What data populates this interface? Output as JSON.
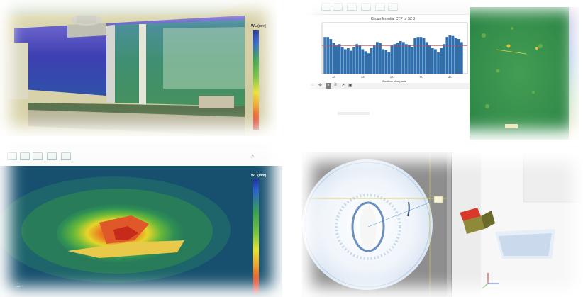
{
  "panel_tl": {
    "colorbar": {
      "title": "WL (mm)",
      "ticks": [
        "",
        "",
        "",
        "",
        "",
        "",
        "",
        "",
        "",
        "",
        "",
        "",
        "",
        "",
        "",
        "",
        "",
        "",
        "",
        "",
        ""
      ]
    }
  },
  "panel_tr": {
    "chart_data": {
      "type": "bar",
      "title": "Circumferential CTP of SZ 3",
      "xlabel": "Position along axis",
      "ylabel": "",
      "xticks": [
        "40",
        "50",
        "60",
        "70",
        "80"
      ],
      "xlim": [
        36,
        86
      ],
      "ylim": [
        0,
        1
      ],
      "x": [
        37,
        38,
        39,
        40,
        41,
        42,
        43,
        44,
        45,
        46,
        47,
        48,
        49,
        50,
        51,
        52,
        53,
        54,
        55,
        56,
        57,
        58,
        59,
        60,
        61,
        62,
        63,
        64,
        65,
        66,
        67,
        68,
        69,
        70,
        71,
        72,
        73,
        74,
        75,
        76,
        77,
        78,
        79,
        80,
        81,
        82,
        83,
        84
      ],
      "values": [
        0.72,
        0.72,
        0.68,
        0.6,
        0.55,
        0.58,
        0.52,
        0.48,
        0.5,
        0.45,
        0.52,
        0.58,
        0.55,
        0.48,
        0.44,
        0.4,
        0.5,
        0.55,
        0.62,
        0.6,
        0.48,
        0.46,
        0.42,
        0.55,
        0.58,
        0.6,
        0.64,
        0.62,
        0.58,
        0.56,
        0.52,
        0.7,
        0.72,
        0.72,
        0.7,
        0.62,
        0.55,
        0.5,
        0.48,
        0.42,
        0.5,
        0.58,
        0.72,
        0.75,
        0.74,
        0.7,
        0.68,
        0.62
      ],
      "threshold": 0.55,
      "colors": {
        "bar": "#2f6fad",
        "threshold": "#d44444"
      }
    },
    "status_right": "",
    "console_lines": [
      "",
      "",
      "",
      ""
    ]
  },
  "panel_bl": {
    "toolbar": {
      "tabs": [
        "",
        "",
        "",
        "",
        "",
        "",
        "",
        "",
        "",
        "",
        "",
        "",
        ""
      ],
      "search": "",
      "buttons": [
        "",
        "",
        "",
        "",
        "",
        ""
      ]
    },
    "colorbar": {
      "title": "WL (mm)",
      "ticks": [
        "",
        "",
        "",
        "",
        "",
        "",
        "",
        "",
        "",
        "",
        "",
        "",
        "",
        "",
        "",
        "",
        "",
        "",
        "",
        "",
        ""
      ]
    }
  },
  "panel_br": {
    "ct_label": ""
  },
  "colors": {
    "cb_blue": "#1d2f9a",
    "cb_green": "#3aa34a",
    "cb_yellow": "#e9e22a",
    "cb_red": "#d8261f",
    "field_dark": "#15506e",
    "ct_bg": "#8e8e8e"
  }
}
